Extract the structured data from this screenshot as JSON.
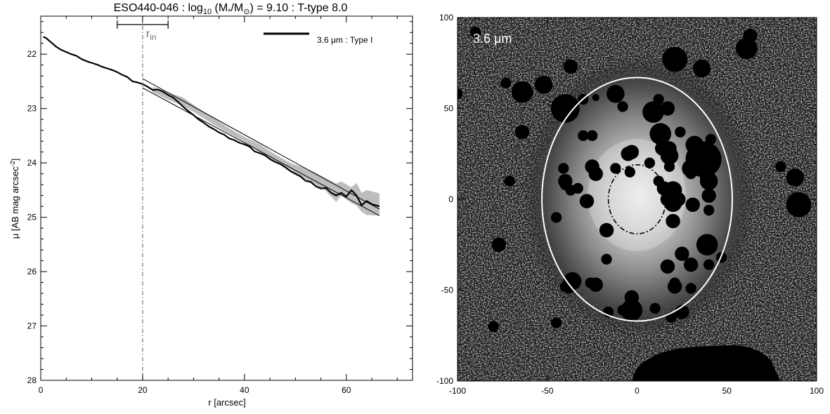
{
  "title": {
    "prefix": "ESO440-046 : log",
    "sub": "10",
    "mid": " (M",
    "sub2": "*",
    "mid2": "/M",
    "sub3": "⊙",
    "suffix": ") = 9.10 : T-type 8.0"
  },
  "chart_data": [
    {
      "type": "line",
      "xlabel": "r [arcsec]",
      "ylabel_prefix": "μ [AB mag arcsec",
      "ylabel_sup": "-2",
      "ylabel_suffix": "]",
      "xlim": [
        0,
        73
      ],
      "ylim": [
        28,
        21.3
      ],
      "y_inverted": true,
      "xticks": [
        0,
        20,
        40,
        60
      ],
      "yticks": [
        22,
        23,
        24,
        25,
        26,
        27,
        28
      ],
      "legend": {
        "label": "3.6 μm : Type I",
        "placement": "top-right"
      },
      "series": [
        {
          "name": "3.6 μm : Type I",
          "x": [
            0.5,
            1,
            2,
            3,
            4,
            5,
            6,
            7,
            8,
            9,
            10,
            11,
            12,
            13,
            14,
            15,
            16,
            17,
            18,
            19,
            20,
            21,
            22,
            23,
            24,
            25,
            26,
            27,
            28,
            29,
            30,
            31,
            32,
            33,
            34,
            35,
            36,
            37,
            38,
            39,
            40,
            41,
            42,
            43,
            44,
            45,
            46,
            47,
            48,
            49,
            50,
            51,
            52,
            53,
            54,
            55,
            56,
            57,
            58,
            59,
            60,
            61,
            62,
            63,
            64,
            65,
            66.5
          ],
          "y": [
            21.68,
            21.7,
            21.78,
            21.86,
            21.92,
            21.96,
            22.0,
            22.03,
            22.09,
            22.13,
            22.16,
            22.19,
            22.23,
            22.26,
            22.29,
            22.33,
            22.38,
            22.42,
            22.5,
            22.52,
            22.55,
            22.6,
            22.66,
            22.65,
            22.69,
            22.75,
            22.8,
            22.88,
            22.97,
            23.05,
            23.12,
            23.2,
            23.26,
            23.33,
            23.38,
            23.44,
            23.48,
            23.55,
            23.58,
            23.63,
            23.66,
            23.7,
            23.79,
            23.82,
            23.86,
            23.93,
            23.98,
            24.02,
            24.08,
            24.15,
            24.2,
            24.25,
            24.33,
            24.35,
            24.43,
            24.47,
            24.46,
            24.55,
            24.6,
            24.55,
            24.62,
            24.5,
            24.6,
            24.78,
            24.7,
            24.76,
            24.8
          ]
        }
      ],
      "band_upper": [
        22.6,
        22.7,
        22.8,
        23.0,
        23.18,
        23.36,
        23.52,
        23.66,
        23.84,
        24.0,
        24.1,
        24.18,
        24.28,
        24.38,
        24.34,
        24.45,
        24.37,
        24.55,
        24.5,
        24.56
      ],
      "band_lower": [
        22.7,
        22.84,
        22.95,
        23.12,
        23.3,
        23.46,
        23.62,
        23.8,
        23.96,
        24.12,
        24.3,
        24.4,
        24.52,
        24.72,
        24.6,
        24.74,
        24.78,
        24.9,
        24.96,
        24.97
      ],
      "band_x": [
        22,
        25,
        28,
        31,
        34,
        37,
        40,
        43,
        46,
        49,
        52,
        54,
        56,
        58,
        59,
        61,
        62,
        63,
        64,
        66.5
      ],
      "fit_lines": [
        {
          "x": [
            20,
            66.5
          ],
          "y": [
            22.45,
            24.85
          ]
        },
        {
          "x": [
            20,
            66.5
          ],
          "y": [
            22.62,
            24.97
          ]
        }
      ],
      "rin": {
        "label": "r",
        "sub": "in",
        "value": 20,
        "range": [
          15,
          25
        ]
      }
    },
    {
      "type": "heatmap",
      "xlim": [
        -100,
        100
      ],
      "ylim": [
        -100,
        100
      ],
      "xticks": [
        -100,
        -50,
        0,
        50,
        100
      ],
      "yticks": [
        -100,
        -50,
        0,
        50,
        100
      ],
      "label": "3.6 μm",
      "outer_ellipse": {
        "cx": 0,
        "cy": 0,
        "a": 53,
        "b": 67
      },
      "inner_ellipse": {
        "cx": 0,
        "cy": 0,
        "a": 16,
        "b": 19
      },
      "masks": [
        [
          -64,
          59,
          6
        ],
        [
          -37,
          73,
          4
        ],
        [
          -64,
          37,
          4
        ],
        [
          -52,
          63,
          5
        ],
        [
          -73,
          64,
          3
        ],
        [
          -40,
          50,
          8
        ],
        [
          -12,
          58,
          5
        ],
        [
          12,
          55,
          3
        ],
        [
          17,
          50,
          4
        ],
        [
          -8,
          51,
          3
        ],
        [
          21,
          77,
          7
        ],
        [
          63,
          90,
          4
        ],
        [
          61,
          83,
          6
        ],
        [
          -90,
          92,
          3
        ],
        [
          9,
          48,
          6
        ],
        [
          13,
          36,
          6
        ],
        [
          36,
          72,
          5
        ],
        [
          -41,
          17,
          3
        ],
        [
          18,
          24,
          5
        ],
        [
          30,
          17,
          5
        ],
        [
          40,
          2,
          4
        ],
        [
          -4,
          15,
          3
        ],
        [
          13,
          28,
          3
        ],
        [
          18,
          28,
          4
        ],
        [
          32,
          30,
          5
        ],
        [
          41,
          33,
          3
        ],
        [
          -30,
          35,
          3
        ],
        [
          -5,
          25,
          4
        ],
        [
          18,
          18,
          3
        ],
        [
          -25,
          18,
          4
        ],
        [
          -23,
          14,
          4
        ],
        [
          24,
          37,
          3
        ],
        [
          30,
          14,
          3
        ],
        [
          15,
          6,
          4
        ],
        [
          -12,
          17,
          3
        ],
        [
          7,
          20,
          3
        ],
        [
          -3,
          26,
          4
        ],
        [
          12,
          10,
          3
        ],
        [
          41,
          21,
          5
        ],
        [
          37,
          22,
          10
        ],
        [
          -30,
          55,
          3
        ],
        [
          14,
          28,
          4
        ],
        [
          20,
          -2,
          3
        ],
        [
          39,
          -25,
          6
        ],
        [
          20,
          5,
          5
        ],
        [
          -40,
          50,
          4
        ],
        [
          21,
          1,
          3
        ],
        [
          -45,
          -10,
          3
        ],
        [
          -28,
          -1,
          4
        ],
        [
          17,
          0,
          4
        ],
        [
          40,
          -6,
          3
        ],
        [
          -25,
          35,
          3
        ],
        [
          -37,
          5,
          3
        ],
        [
          47,
          -32,
          3
        ],
        [
          -17,
          -17,
          4
        ],
        [
          -33,
          6,
          3
        ],
        [
          23,
          0,
          4
        ],
        [
          -40,
          8,
          3
        ],
        [
          40,
          15,
          3
        ],
        [
          25,
          -30,
          4
        ],
        [
          -17,
          -33,
          3
        ],
        [
          -36,
          -45,
          5
        ],
        [
          -40,
          -48,
          3
        ],
        [
          20,
          -2,
          5
        ],
        [
          -38,
          -48,
          4
        ],
        [
          -3,
          -61,
          6
        ],
        [
          10,
          -60,
          3
        ],
        [
          -23,
          -47,
          4
        ],
        [
          -16,
          -62,
          3
        ],
        [
          21,
          -46,
          3
        ],
        [
          25,
          -62,
          4
        ],
        [
          40,
          -36,
          3
        ],
        [
          30,
          -49,
          3
        ],
        [
          19,
          -65,
          3
        ],
        [
          -71,
          10,
          3
        ],
        [
          -77,
          -25,
          4
        ],
        [
          -100,
          58,
          3
        ],
        [
          -80,
          -70,
          3
        ],
        [
          -45,
          -68,
          3
        ],
        [
          31,
          -3,
          4
        ],
        [
          20,
          -12,
          4
        ],
        [
          17,
          -37,
          4
        ],
        [
          30,
          -36,
          4
        ],
        [
          21,
          -48,
          4
        ],
        [
          39,
          12,
          4
        ],
        [
          -26,
          18,
          3
        ],
        [
          -26,
          -46,
          3
        ],
        [
          -3,
          -54,
          4
        ],
        [
          88,
          12,
          5
        ],
        [
          90,
          -3,
          7
        ],
        [
          -3,
          -53,
          3
        ],
        [
          -8,
          -61,
          3
        ],
        [
          40,
          10,
          5
        ],
        [
          36,
          24,
          8
        ],
        [
          -40,
          10,
          4
        ],
        [
          80,
          18,
          3
        ],
        [
          -23,
          56,
          2
        ]
      ]
    }
  ]
}
